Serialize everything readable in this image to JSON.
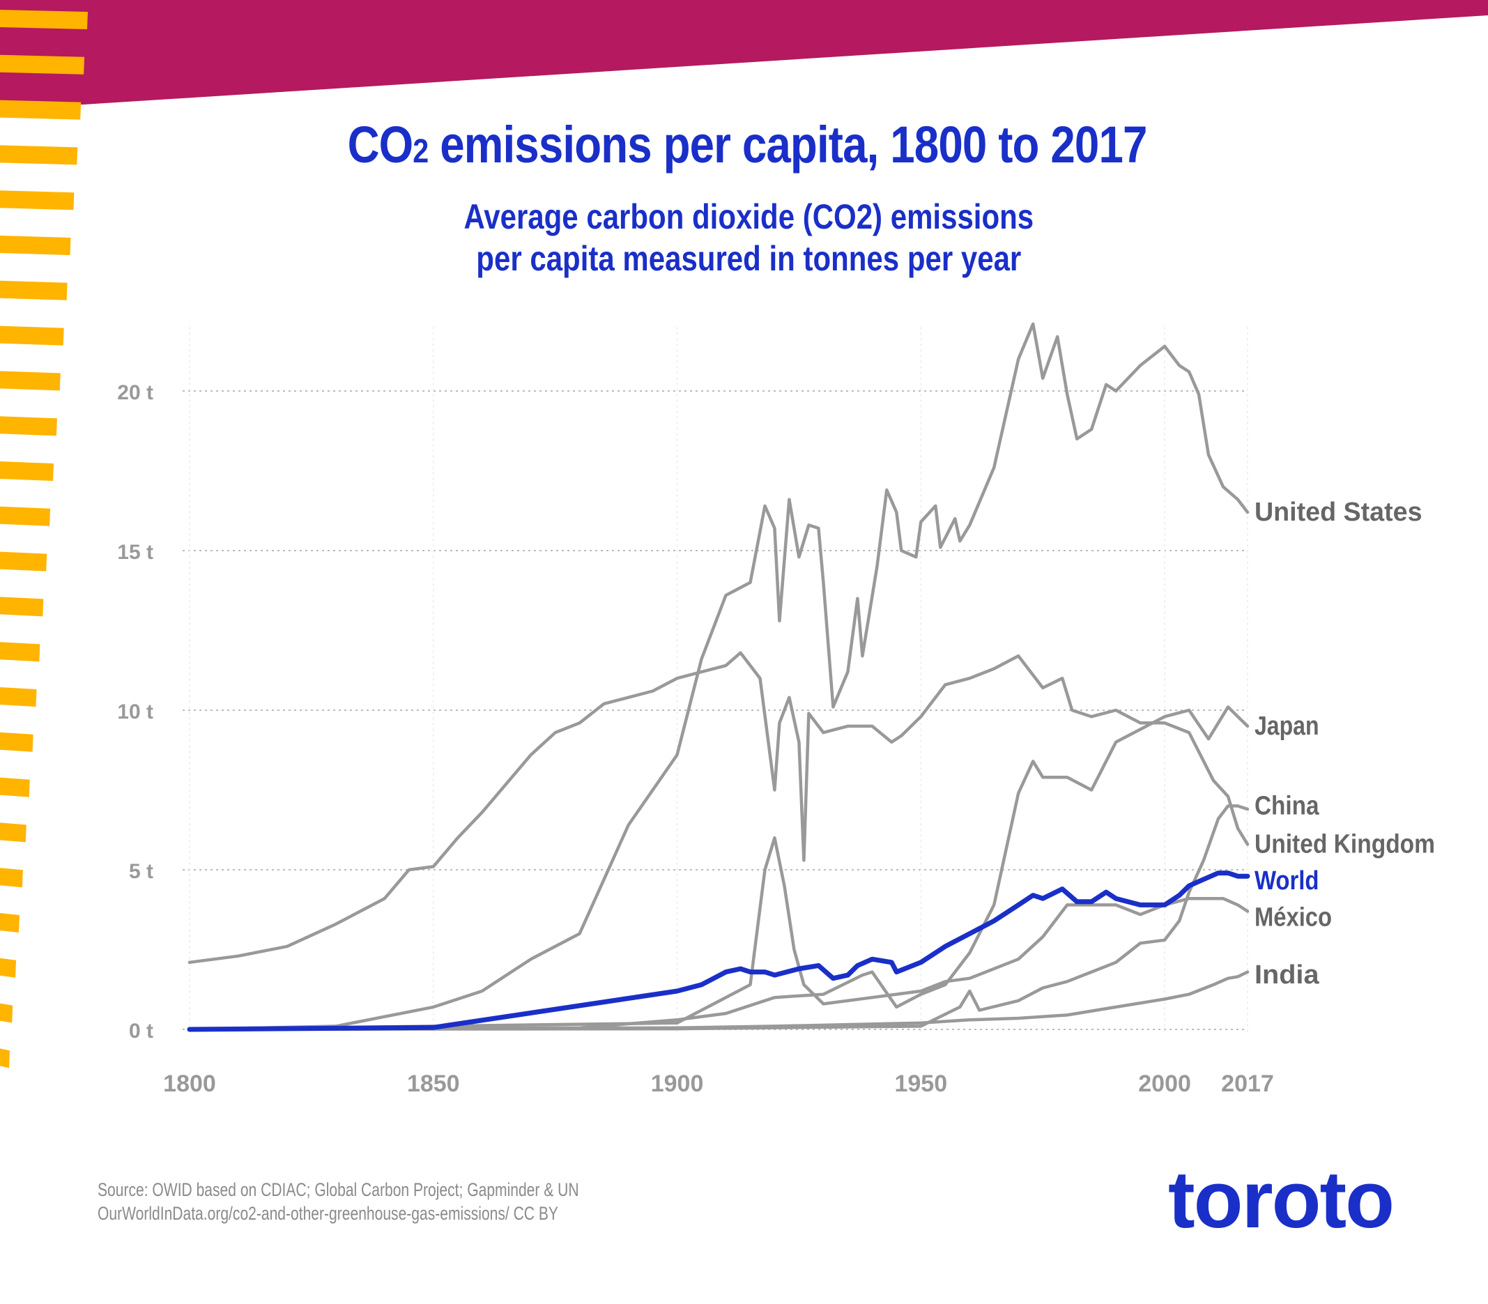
{
  "title": {
    "main_prefix": "CO",
    "sub": "2",
    "main_suffix": " emissions per capita, 1800 to 2017"
  },
  "subtitle": {
    "line1": "Average carbon dioxide (CO2) emissions",
    "line2": "per capita measured in tonnes per year"
  },
  "source": {
    "line1": "Source: OWID based on CDIAC; Global Carbon Project; Gapminder & UN",
    "line2": "OurWorldInData.org/co2-and-other-greenhouse-gas-emissions/ CC BY"
  },
  "logo": "toroto",
  "colors": {
    "brand": "#1a2fc8",
    "banner": "#b5195f",
    "stripes": "#ffb400",
    "series": "#999999",
    "label": "#666666",
    "grid": "#bbbbbb"
  },
  "chart_data": {
    "type": "line",
    "title": "CO2 emissions per capita, 1800 to 2017",
    "xlabel": "",
    "ylabel": "",
    "xlim": [
      1800,
      2017
    ],
    "ylim": [
      0,
      22
    ],
    "x_ticks": [
      {
        "value": 1800,
        "label": "1800"
      },
      {
        "value": 1850,
        "label": "1850"
      },
      {
        "value": 1900,
        "label": "1900"
      },
      {
        "value": 1950,
        "label": "1950"
      },
      {
        "value": 2000,
        "label": "2000"
      },
      {
        "value": 2017,
        "label": "2017"
      }
    ],
    "y_ticks": [
      {
        "value": 0,
        "label": "0 t"
      },
      {
        "value": 5,
        "label": "5 t"
      },
      {
        "value": 10,
        "label": "10 t"
      },
      {
        "value": 15,
        "label": "15 t"
      },
      {
        "value": 20,
        "label": "20 t"
      }
    ],
    "grid": "horizontal dotted",
    "series": [
      {
        "name": "United States",
        "highlight": false,
        "points": [
          [
            1800,
            0.0
          ],
          [
            1830,
            0.1
          ],
          [
            1850,
            0.7
          ],
          [
            1860,
            1.2
          ],
          [
            1870,
            2.2
          ],
          [
            1880,
            3.0
          ],
          [
            1890,
            6.4
          ],
          [
            1900,
            8.6
          ],
          [
            1905,
            11.6
          ],
          [
            1910,
            13.6
          ],
          [
            1915,
            14.0
          ],
          [
            1918,
            16.4
          ],
          [
            1920,
            15.7
          ],
          [
            1921,
            12.8
          ],
          [
            1923,
            16.6
          ],
          [
            1925,
            14.8
          ],
          [
            1927,
            15.8
          ],
          [
            1929,
            15.7
          ],
          [
            1930,
            14.0
          ],
          [
            1932,
            10.1
          ],
          [
            1935,
            11.2
          ],
          [
            1937,
            13.5
          ],
          [
            1938,
            11.7
          ],
          [
            1941,
            14.5
          ],
          [
            1943,
            16.9
          ],
          [
            1945,
            16.2
          ],
          [
            1946,
            15.0
          ],
          [
            1949,
            14.8
          ],
          [
            1950,
            15.9
          ],
          [
            1953,
            16.4
          ],
          [
            1954,
            15.1
          ],
          [
            1957,
            16.0
          ],
          [
            1958,
            15.3
          ],
          [
            1960,
            15.8
          ],
          [
            1965,
            17.6
          ],
          [
            1970,
            21.0
          ],
          [
            1973,
            22.1
          ],
          [
            1975,
            20.4
          ],
          [
            1978,
            21.7
          ],
          [
            1980,
            19.9
          ],
          [
            1982,
            18.5
          ],
          [
            1985,
            18.8
          ],
          [
            1988,
            20.2
          ],
          [
            1990,
            20.0
          ],
          [
            1995,
            20.8
          ],
          [
            2000,
            21.4
          ],
          [
            2003,
            20.8
          ],
          [
            2005,
            20.6
          ],
          [
            2007,
            19.9
          ],
          [
            2009,
            18.0
          ],
          [
            2012,
            17.0
          ],
          [
            2015,
            16.6
          ],
          [
            2017,
            16.2
          ]
        ]
      },
      {
        "name": "United Kingdom",
        "highlight": false,
        "points": [
          [
            1800,
            2.1
          ],
          [
            1810,
            2.3
          ],
          [
            1820,
            2.6
          ],
          [
            1830,
            3.3
          ],
          [
            1840,
            4.1
          ],
          [
            1845,
            5.0
          ],
          [
            1850,
            5.1
          ],
          [
            1855,
            6.0
          ],
          [
            1860,
            6.8
          ],
          [
            1865,
            7.7
          ],
          [
            1870,
            8.6
          ],
          [
            1875,
            9.3
          ],
          [
            1880,
            9.6
          ],
          [
            1885,
            10.2
          ],
          [
            1890,
            10.4
          ],
          [
            1895,
            10.6
          ],
          [
            1900,
            11.0
          ],
          [
            1905,
            11.2
          ],
          [
            1910,
            11.4
          ],
          [
            1913,
            11.8
          ],
          [
            1917,
            11.0
          ],
          [
            1920,
            7.5
          ],
          [
            1921,
            9.6
          ],
          [
            1923,
            10.4
          ],
          [
            1925,
            9.0
          ],
          [
            1926,
            5.3
          ],
          [
            1927,
            9.9
          ],
          [
            1930,
            9.3
          ],
          [
            1935,
            9.5
          ],
          [
            1940,
            9.5
          ],
          [
            1944,
            9.0
          ],
          [
            1946,
            9.2
          ],
          [
            1950,
            9.8
          ],
          [
            1955,
            10.8
          ],
          [
            1960,
            11.0
          ],
          [
            1965,
            11.3
          ],
          [
            1970,
            11.7
          ],
          [
            1975,
            10.7
          ],
          [
            1979,
            11.0
          ],
          [
            1981,
            10.0
          ],
          [
            1985,
            9.8
          ],
          [
            1990,
            10.0
          ],
          [
            1995,
            9.6
          ],
          [
            2000,
            9.6
          ],
          [
            2005,
            9.3
          ],
          [
            2010,
            7.8
          ],
          [
            2013,
            7.3
          ],
          [
            2015,
            6.3
          ],
          [
            2017,
            5.8
          ]
        ]
      },
      {
        "name": "Japan",
        "highlight": false,
        "points": [
          [
            1800,
            0.0
          ],
          [
            1880,
            0.05
          ],
          [
            1900,
            0.3
          ],
          [
            1910,
            0.5
          ],
          [
            1920,
            1.0
          ],
          [
            1930,
            1.1
          ],
          [
            1938,
            1.7
          ],
          [
            1940,
            1.8
          ],
          [
            1945,
            0.7
          ],
          [
            1950,
            1.1
          ],
          [
            1955,
            1.4
          ],
          [
            1960,
            2.4
          ],
          [
            1965,
            3.9
          ],
          [
            1970,
            7.4
          ],
          [
            1973,
            8.4
          ],
          [
            1975,
            7.9
          ],
          [
            1980,
            7.9
          ],
          [
            1985,
            7.5
          ],
          [
            1990,
            9.0
          ],
          [
            1995,
            9.4
          ],
          [
            2000,
            9.8
          ],
          [
            2005,
            10.0
          ],
          [
            2009,
            9.1
          ],
          [
            2013,
            10.1
          ],
          [
            2015,
            9.8
          ],
          [
            2017,
            9.5
          ]
        ]
      },
      {
        "name": "China",
        "highlight": false,
        "points": [
          [
            1800,
            0.0
          ],
          [
            1900,
            0.02
          ],
          [
            1950,
            0.1
          ],
          [
            1958,
            0.7
          ],
          [
            1960,
            1.2
          ],
          [
            1962,
            0.6
          ],
          [
            1970,
            0.9
          ],
          [
            1975,
            1.3
          ],
          [
            1980,
            1.5
          ],
          [
            1985,
            1.8
          ],
          [
            1990,
            2.1
          ],
          [
            1995,
            2.7
          ],
          [
            2000,
            2.8
          ],
          [
            2003,
            3.4
          ],
          [
            2005,
            4.3
          ],
          [
            2008,
            5.3
          ],
          [
            2011,
            6.6
          ],
          [
            2013,
            7.0
          ],
          [
            2015,
            7.0
          ],
          [
            2017,
            6.9
          ]
        ]
      },
      {
        "name": "México",
        "highlight": false,
        "points": [
          [
            1800,
            0.0
          ],
          [
            1900,
            0.2
          ],
          [
            1915,
            1.4
          ],
          [
            1918,
            5.0
          ],
          [
            1920,
            6.0
          ],
          [
            1922,
            4.5
          ],
          [
            1924,
            2.5
          ],
          [
            1926,
            1.4
          ],
          [
            1930,
            0.8
          ],
          [
            1940,
            1.0
          ],
          [
            1950,
            1.2
          ],
          [
            1955,
            1.5
          ],
          [
            1960,
            1.6
          ],
          [
            1970,
            2.2
          ],
          [
            1975,
            2.9
          ],
          [
            1980,
            3.9
          ],
          [
            1985,
            3.9
          ],
          [
            1990,
            3.9
          ],
          [
            1995,
            3.6
          ],
          [
            2000,
            3.9
          ],
          [
            2005,
            4.1
          ],
          [
            2010,
            4.1
          ],
          [
            2012,
            4.1
          ],
          [
            2015,
            3.9
          ],
          [
            2017,
            3.7
          ]
        ]
      },
      {
        "name": "India",
        "highlight": false,
        "points": [
          [
            1800,
            0.0
          ],
          [
            1900,
            0.05
          ],
          [
            1920,
            0.1
          ],
          [
            1950,
            0.2
          ],
          [
            1960,
            0.3
          ],
          [
            1970,
            0.35
          ],
          [
            1980,
            0.45
          ],
          [
            1990,
            0.7
          ],
          [
            2000,
            0.95
          ],
          [
            2005,
            1.1
          ],
          [
            2010,
            1.4
          ],
          [
            2013,
            1.6
          ],
          [
            2015,
            1.65
          ],
          [
            2017,
            1.8
          ]
        ]
      },
      {
        "name": "World",
        "highlight": true,
        "points": [
          [
            1800,
            0.0
          ],
          [
            1850,
            0.06
          ],
          [
            1900,
            1.2
          ],
          [
            1905,
            1.4
          ],
          [
            1910,
            1.8
          ],
          [
            1913,
            1.9
          ],
          [
            1915,
            1.8
          ],
          [
            1918,
            1.8
          ],
          [
            1920,
            1.7
          ],
          [
            1925,
            1.9
          ],
          [
            1929,
            2.0
          ],
          [
            1932,
            1.6
          ],
          [
            1935,
            1.7
          ],
          [
            1937,
            2.0
          ],
          [
            1940,
            2.2
          ],
          [
            1944,
            2.1
          ],
          [
            1945,
            1.8
          ],
          [
            1950,
            2.1
          ],
          [
            1955,
            2.6
          ],
          [
            1960,
            3.0
          ],
          [
            1965,
            3.4
          ],
          [
            1970,
            3.9
          ],
          [
            1973,
            4.2
          ],
          [
            1975,
            4.1
          ],
          [
            1979,
            4.4
          ],
          [
            1982,
            4.0
          ],
          [
            1985,
            4.0
          ],
          [
            1988,
            4.3
          ],
          [
            1990,
            4.1
          ],
          [
            1995,
            3.9
          ],
          [
            2000,
            3.9
          ],
          [
            2003,
            4.2
          ],
          [
            2005,
            4.5
          ],
          [
            2008,
            4.7
          ],
          [
            2011,
            4.9
          ],
          [
            2013,
            4.9
          ],
          [
            2015,
            4.8
          ],
          [
            2017,
            4.8
          ]
        ]
      }
    ]
  }
}
